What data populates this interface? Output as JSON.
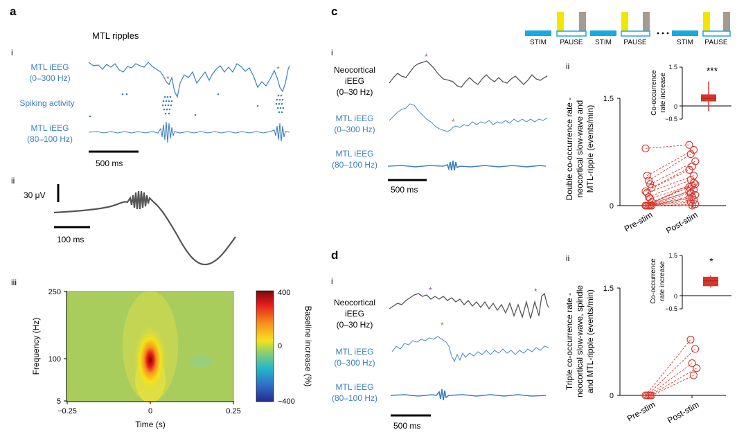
{
  "panels": {
    "a": {
      "letter": "a",
      "title": "MTL ripples",
      "i": {
        "label": "i",
        "traces": [
          "MTL iEEG",
          "(0–300 Hz)",
          "Spiking activity",
          "MTL iEEG",
          "(80–100 Hz)"
        ],
        "scale": "500 ms"
      },
      "ii": {
        "label": "ii",
        "voltage": "30 μV",
        "scale": "100 ms"
      },
      "iii": {
        "label": "iii",
        "ylabel": "Frequency (Hz)",
        "xlabel": "Time (s)",
        "yticks": [
          "250",
          "100",
          "5"
        ],
        "xticks": [
          "−0.25",
          "0",
          "0.25"
        ],
        "colorbar_label": "Baseline increase (%)",
        "colorbar_ticks": [
          "400",
          "0",
          "−400"
        ]
      }
    },
    "c": {
      "letter": "c",
      "protocol": [
        "STIM",
        "PAUSE",
        "STIM",
        "PAUSE",
        "STIM",
        "PAUSE"
      ],
      "i": {
        "label": "i",
        "traces": [
          "Neocortical",
          "iEEG",
          "(0–30 Hz)",
          "MTL iEEG",
          "(0–300 Hz)",
          "MTL iEEG",
          "(80–100 Hz)"
        ],
        "scale": "500 ms"
      },
      "ii": {
        "label": "ii",
        "ylabel": [
          "Double co-occurrence rate -",
          "neocortical slow-wave and",
          "MTL-ripple (events/min)"
        ],
        "yticks": [
          "1.5",
          "0"
        ],
        "xticks": [
          "Pre-stim",
          "Post-stim"
        ],
        "inset": {
          "ylabel": [
            "Co-occurrence",
            "rate increase"
          ],
          "yticks": [
            "1.5",
            "0",
            "−0.5"
          ],
          "sig": "***"
        }
      }
    },
    "d": {
      "letter": "d",
      "i": {
        "label": "i",
        "traces": [
          "Neocortical",
          "iEEG",
          "(0–30 Hz)",
          "MTL iEEG",
          "(0–300 Hz)",
          "MTL iEEG",
          "(80–100 Hz)"
        ],
        "scale": "500 ms"
      },
      "ii": {
        "label": "ii",
        "ylabel": [
          "Triple co-occurrence rate -",
          "neocortical slow-wave, spindle",
          "and MTL-ripple (events/min)"
        ],
        "yticks": [
          "1.5",
          "0"
        ],
        "xticks": [
          "Pre-stim",
          "Post-stim"
        ],
        "inset": {
          "ylabel": [
            "Co-occurrence",
            "rate increase"
          ],
          "yticks": [
            "1.5",
            "0",
            "−0.5"
          ],
          "sig": "*"
        }
      }
    }
  },
  "colors": {
    "blue": "#3a7fc1",
    "red": "#d9352b",
    "grey": "#555555",
    "orange": "#b8743a",
    "magenta": "#c0379c",
    "yellow": "#f2e600",
    "taupe": "#a69b91",
    "cyan": "#19a8e0"
  },
  "chart_data": [
    {
      "type": "scatter",
      "panel": "c-ii",
      "ylim": [
        0,
        1.5
      ],
      "categories": [
        "Pre-stim",
        "Post-stim"
      ],
      "pairs": [
        [
          0.8,
          0.85
        ],
        [
          0.42,
          0.78
        ],
        [
          0.35,
          0.72
        ],
        [
          0.3,
          0.62
        ],
        [
          0.25,
          0.55
        ],
        [
          0.2,
          0.5
        ],
        [
          0.18,
          0.42
        ],
        [
          0.12,
          0.36
        ],
        [
          0.1,
          0.3
        ],
        [
          0.05,
          0.28
        ],
        [
          0,
          0.26
        ],
        [
          0,
          0.22
        ],
        [
          0,
          0.18
        ],
        [
          0,
          0.15
        ],
        [
          0,
          0.12
        ],
        [
          0,
          0.1
        ],
        [
          0,
          0.08
        ],
        [
          0,
          0.05
        ],
        [
          0,
          0.02
        ],
        [
          0,
          0.0
        ],
        [
          0,
          0.2
        ],
        [
          0,
          0.32
        ]
      ]
    },
    {
      "type": "bar",
      "panel": "c-ii-inset",
      "ylim": [
        -0.5,
        1.5
      ],
      "median": 0.3,
      "q1": 0.18,
      "q3": 0.45,
      "whisker_low": -0.2,
      "whisker_high": 0.95
    },
    {
      "type": "scatter",
      "panel": "d-ii",
      "ylim": [
        0,
        1.5
      ],
      "categories": [
        "Pre-stim",
        "Post-stim"
      ],
      "pairs": [
        [
          0,
          0.78
        ],
        [
          0,
          0.65
        ],
        [
          0,
          0.45
        ],
        [
          0,
          0.38
        ],
        [
          0,
          0.28
        ]
      ]
    },
    {
      "type": "bar",
      "panel": "d-ii-inset",
      "ylim": [
        -0.5,
        1.5
      ],
      "median": 0.55,
      "q1": 0.35,
      "q3": 0.7,
      "whisker_low": 0.3,
      "whisker_high": 0.75
    },
    {
      "type": "heatmap",
      "panel": "a-iii",
      "xlim": [
        -0.25,
        0.25
      ],
      "ylim": [
        5,
        250
      ],
      "clim": [
        -400,
        400
      ],
      "peak": {
        "x": 0,
        "y": 100,
        "value": 400
      }
    }
  ]
}
